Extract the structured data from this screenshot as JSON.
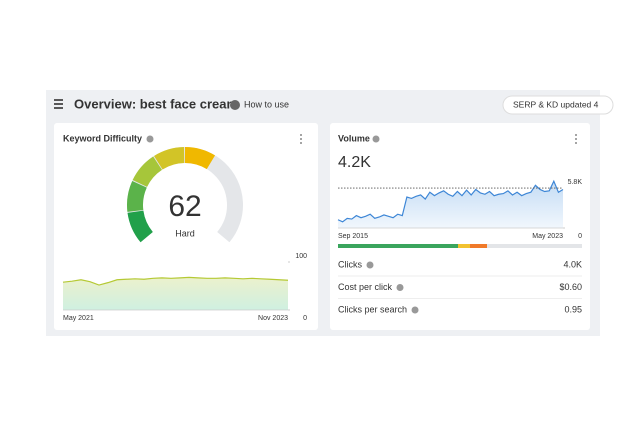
{
  "header": {
    "title": "Overview: best face cream",
    "help": "How to use",
    "badge": "SERP & KD updated 4"
  },
  "keyword_difficulty": {
    "title": "Keyword Difficulty",
    "score": 62,
    "max": 100,
    "label": "Hard",
    "chart": {
      "type": "area",
      "x_start": "May 2021",
      "x_end": "Nov 2023",
      "ylim": [
        0,
        100
      ],
      "yticks": [
        0,
        100
      ],
      "color": "#b5c934",
      "values": [
        58,
        60,
        63,
        59,
        52,
        57,
        63,
        64,
        65,
        64,
        66,
        67,
        66,
        67,
        68,
        67,
        66,
        66,
        67,
        66,
        65,
        66,
        65,
        64,
        63,
        62
      ]
    }
  },
  "volume": {
    "title": "Volume",
    "value_label": "4.2K",
    "chart": {
      "type": "area",
      "x_start": "Sep 2015",
      "x_end": "May 2023",
      "ylim": [
        0,
        7700
      ],
      "yticks": [
        0,
        {
          "value": 5800,
          "label": "5.8K"
        }
      ],
      "color": "#3d86d6",
      "values": [
        1200,
        900,
        1400,
        1300,
        1800,
        1500,
        1700,
        2000,
        1400,
        1600,
        1900,
        1700,
        1500,
        2000,
        1800,
        4500,
        4300,
        4600,
        4800,
        4200,
        5200,
        4700,
        5100,
        5400,
        4900,
        4600,
        5300,
        4700,
        5500,
        4800,
        5600,
        5100,
        4900,
        5300,
        4700,
        4900,
        5000,
        5400,
        4800,
        5200,
        4700,
        5000,
        5200,
        6200,
        5600,
        5300,
        5400,
        6800,
        5200,
        5600
      ]
    },
    "metrics": [
      {
        "label": "Clicks",
        "value": "4.0K"
      },
      {
        "label": "Cost per click",
        "value": "$0.60"
      },
      {
        "label": "Clicks per search",
        "value": "0.95"
      }
    ]
  }
}
